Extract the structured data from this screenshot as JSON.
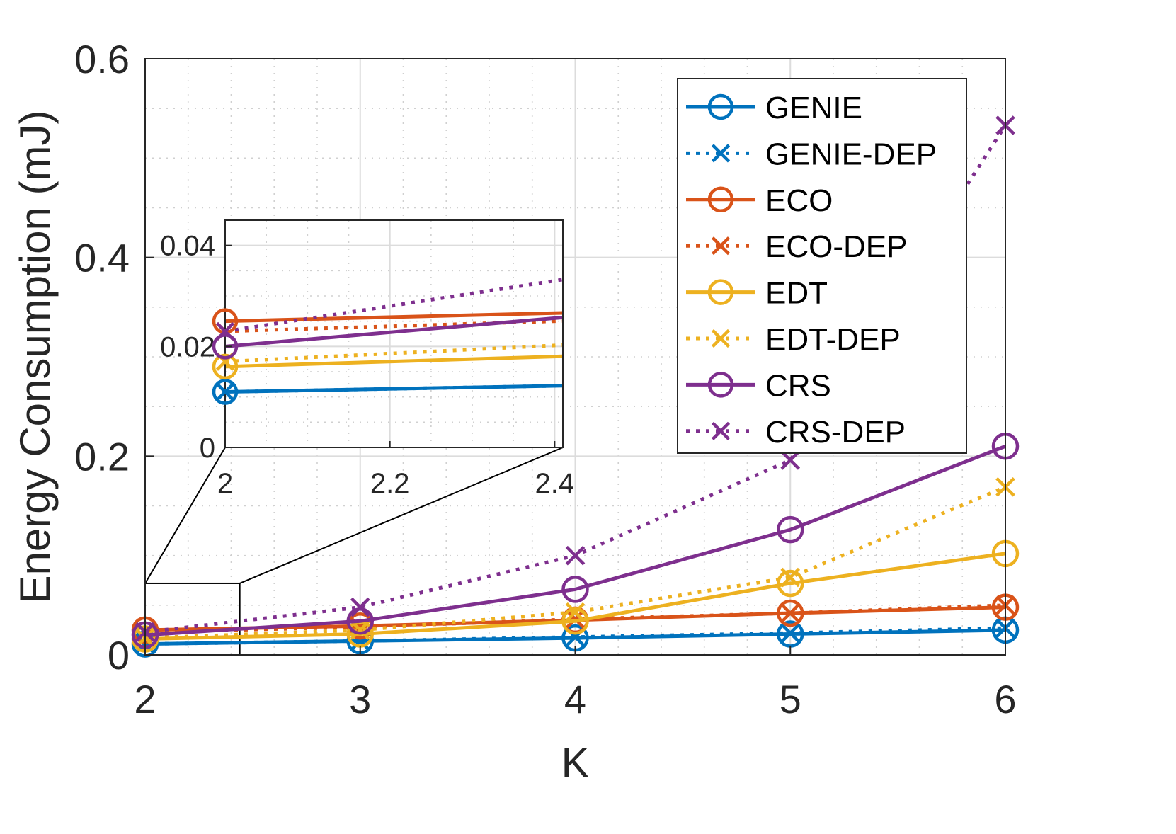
{
  "chart_data": {
    "type": "line",
    "title": "",
    "xlabel": "K",
    "ylabel": "Energy Consumption (mJ)",
    "x": [
      2,
      3,
      4,
      5,
      6
    ],
    "xlim": [
      2,
      6
    ],
    "ylim": [
      0,
      0.6
    ],
    "xticks": [
      2,
      3,
      4,
      5,
      6
    ],
    "yticks": [
      0,
      0.2,
      0.4,
      0.6
    ],
    "xtick_labels": [
      "2",
      "3",
      "4",
      "5",
      "6"
    ],
    "ytick_labels": [
      "0",
      "0.2",
      "0.4",
      "0.6"
    ],
    "grid": "major and minor",
    "legend_position": "top-right",
    "series": [
      {
        "name": "GENIE",
        "color": "#0072BD",
        "style": "solid",
        "marker": "circle",
        "values": [
          0.011,
          0.014,
          0.017,
          0.021,
          0.025
        ]
      },
      {
        "name": "GENIE-DEP",
        "color": "#0072BD",
        "style": "dotted",
        "marker": "x",
        "values": [
          0.011,
          0.014,
          0.018,
          0.022,
          0.027
        ]
      },
      {
        "name": "ECO",
        "color": "#D95319",
        "style": "solid",
        "marker": "circle",
        "values": [
          0.025,
          0.029,
          0.035,
          0.042,
          0.048
        ]
      },
      {
        "name": "ECO-DEP",
        "color": "#D95319",
        "style": "dotted",
        "marker": "x",
        "values": [
          0.023,
          0.028,
          0.036,
          0.042,
          0.05
        ]
      },
      {
        "name": "EDT",
        "color": "#EDB120",
        "style": "solid",
        "marker": "circle",
        "values": [
          0.016,
          0.021,
          0.034,
          0.072,
          0.102
        ]
      },
      {
        "name": "EDT-DEP",
        "color": "#EDB120",
        "style": "dotted",
        "marker": "x",
        "values": [
          0.017,
          0.025,
          0.043,
          0.078,
          0.169
        ]
      },
      {
        "name": "CRS",
        "color": "#7E2F8E",
        "style": "solid",
        "marker": "circle",
        "values": [
          0.02,
          0.034,
          0.066,
          0.126,
          0.21
        ]
      },
      {
        "name": "CRS-DEP",
        "color": "#7E2F8E",
        "style": "dotted",
        "marker": "x",
        "values": [
          0.023,
          0.048,
          0.1,
          0.196,
          0.533
        ]
      }
    ],
    "inset": {
      "xlim": [
        2,
        2.41
      ],
      "ylim": [
        0,
        0.045
      ],
      "xticks": [
        2,
        2.2,
        2.4
      ],
      "yticks": [
        0,
        0.02,
        0.04
      ],
      "xtick_labels": [
        "2",
        "2.2",
        "2.4"
      ],
      "ytick_labels": [
        "0",
        "0.02",
        "0.04"
      ],
      "zoom_region": {
        "x": [
          2,
          2.44
        ],
        "y": [
          0,
          0.072
        ]
      }
    }
  }
}
